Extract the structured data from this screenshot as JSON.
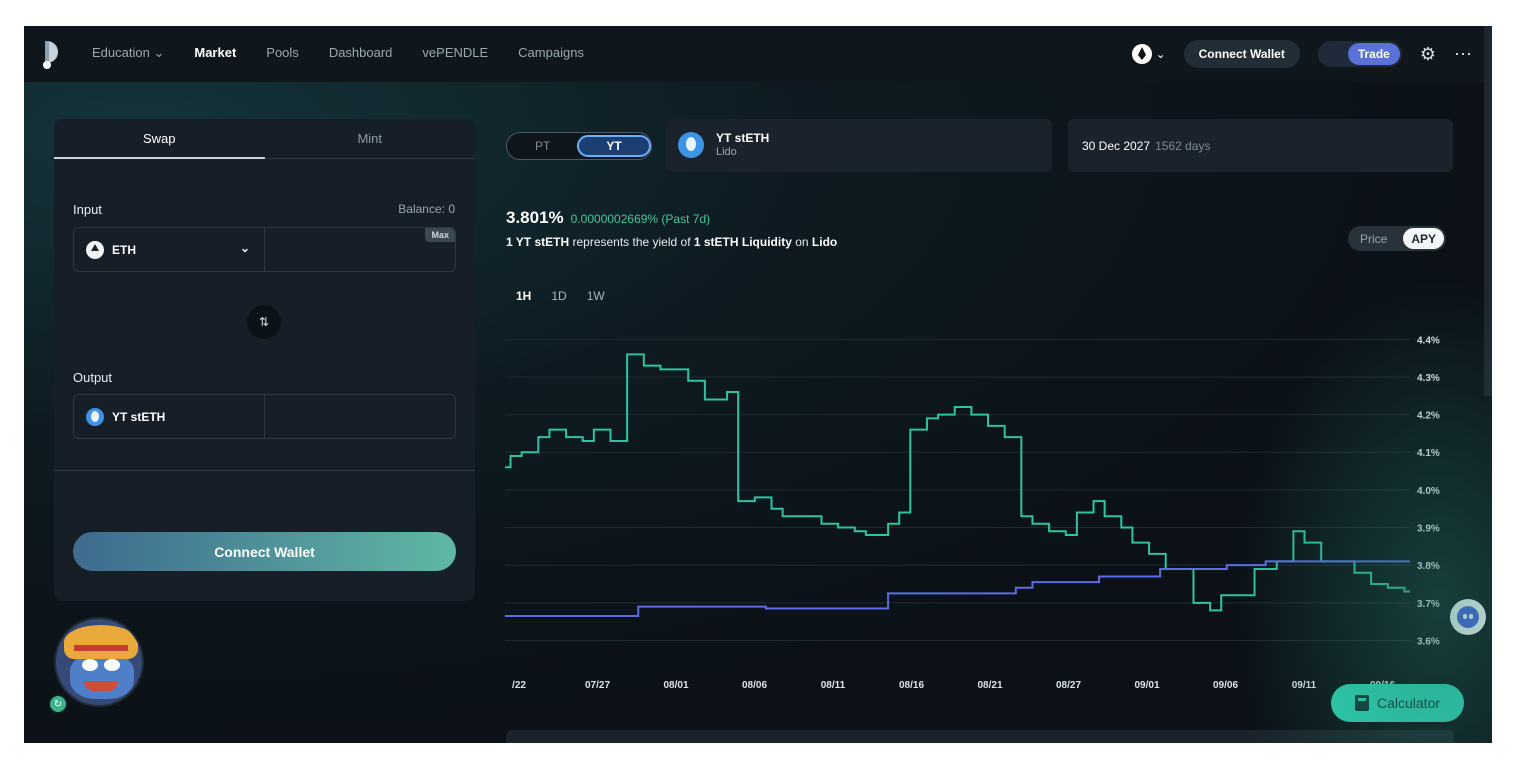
{
  "nav": {
    "links": [
      {
        "label": "Education",
        "has_dropdown": true
      },
      {
        "label": "Market",
        "active": true
      },
      {
        "label": "Pools"
      },
      {
        "label": "Dashboard"
      },
      {
        "label": "vePENDLE"
      },
      {
        "label": "Campaigns"
      }
    ],
    "chevron": "⌄",
    "connect_wallet": "Connect Wallet",
    "trade": "Trade",
    "settings_glyph": "⚙",
    "more_glyph": "⋯"
  },
  "swap_card": {
    "tabs": [
      "Swap",
      "Mint"
    ],
    "input_label": "Input",
    "balance": "Balance: 0",
    "input_token": "ETH",
    "max_label": "Max",
    "switch_glyph": "⇅",
    "output_label": "Output",
    "output_token": "YT stETH",
    "connect_wallet": "Connect Wallet"
  },
  "pt_yt": {
    "pt": "PT",
    "yt": "YT"
  },
  "market": {
    "name": "YT stETH",
    "protocol": "Lido"
  },
  "maturity": {
    "date": "30 Dec 2027",
    "days": "1562 days"
  },
  "apy": {
    "value": "3.801%",
    "change": "0.0000002669% (Past 7d)"
  },
  "description": {
    "prefix": "1 YT stETH",
    "middle": " represents the yield of ",
    "asset": "1 stETH Liquidity",
    "on": " on ",
    "protocol": "Lido"
  },
  "view_toggle": {
    "price": "Price",
    "apy": "APY"
  },
  "periods": [
    "1H",
    "1D",
    "1W"
  ],
  "calculator": "Calculator",
  "chart_data": {
    "type": "line",
    "x_tick_labels": [
      "/22",
      "07/27",
      "08/01",
      "08/06",
      "08/11",
      "08/16",
      "08/21",
      "08/27",
      "09/01",
      "09/06",
      "09/11",
      "09/16"
    ],
    "y_tick_labels": [
      "4.4%",
      "4.3%",
      "4.2%",
      "4.1%",
      "4.0%",
      "3.9%",
      "3.8%",
      "3.7%",
      "3.6%"
    ],
    "ylim": [
      3.58,
      4.43
    ],
    "grid": true,
    "series": [
      {
        "color": "#2ec4a0",
        "step": true,
        "points": [
          [
            0,
            4.06
          ],
          [
            0.1,
            4.09
          ],
          [
            0.3,
            4.1
          ],
          [
            0.6,
            4.14
          ],
          [
            0.8,
            4.16
          ],
          [
            1.1,
            4.14
          ],
          [
            1.4,
            4.13
          ],
          [
            1.6,
            4.16
          ],
          [
            1.9,
            4.13
          ],
          [
            2.2,
            4.36
          ],
          [
            2.5,
            4.33
          ],
          [
            2.8,
            4.32
          ],
          [
            3.3,
            4.29
          ],
          [
            3.6,
            4.24
          ],
          [
            4.0,
            4.26
          ],
          [
            4.2,
            3.97
          ],
          [
            4.5,
            3.98
          ],
          [
            4.8,
            3.95
          ],
          [
            5.0,
            3.93
          ],
          [
            5.4,
            3.93
          ],
          [
            5.7,
            3.91
          ],
          [
            6.0,
            3.9
          ],
          [
            6.3,
            3.89
          ],
          [
            6.5,
            3.88
          ],
          [
            6.9,
            3.91
          ],
          [
            7.1,
            3.94
          ],
          [
            7.3,
            4.16
          ],
          [
            7.6,
            4.19
          ],
          [
            7.8,
            4.2
          ],
          [
            8.1,
            4.22
          ],
          [
            8.4,
            4.2
          ],
          [
            8.7,
            4.17
          ],
          [
            9.0,
            4.14
          ],
          [
            9.3,
            3.93
          ],
          [
            9.5,
            3.91
          ],
          [
            9.8,
            3.89
          ],
          [
            10.1,
            3.88
          ],
          [
            10.3,
            3.94
          ],
          [
            10.6,
            3.97
          ],
          [
            10.8,
            3.93
          ],
          [
            11.1,
            3.9
          ],
          [
            11.3,
            3.86
          ],
          [
            11.6,
            3.83
          ],
          [
            11.9,
            3.79
          ],
          [
            12.3,
            3.79
          ],
          [
            12.4,
            3.7
          ],
          [
            12.7,
            3.68
          ],
          [
            12.9,
            3.72
          ],
          [
            13.2,
            3.72
          ],
          [
            13.5,
            3.79
          ],
          [
            13.9,
            3.81
          ],
          [
            14.2,
            3.89
          ],
          [
            14.4,
            3.86
          ],
          [
            14.7,
            3.81
          ],
          [
            15.0,
            3.81
          ],
          [
            15.3,
            3.78
          ],
          [
            15.6,
            3.75
          ],
          [
            15.9,
            3.74
          ],
          [
            16.2,
            3.73
          ]
        ]
      },
      {
        "color": "#5c6ee6",
        "step": true,
        "points": [
          [
            0,
            3.665
          ],
          [
            2.3,
            3.665
          ],
          [
            2.4,
            3.69
          ],
          [
            4.6,
            3.69
          ],
          [
            4.7,
            3.685
          ],
          [
            6.8,
            3.685
          ],
          [
            6.9,
            3.725
          ],
          [
            9.1,
            3.725
          ],
          [
            9.2,
            3.74
          ],
          [
            9.5,
            3.755
          ],
          [
            10.6,
            3.755
          ],
          [
            10.7,
            3.77
          ],
          [
            11.7,
            3.77
          ],
          [
            11.8,
            3.79
          ],
          [
            12.9,
            3.79
          ],
          [
            13.0,
            3.8
          ],
          [
            13.6,
            3.8
          ],
          [
            13.7,
            3.81
          ],
          [
            16.3,
            3.81
          ]
        ]
      }
    ]
  }
}
